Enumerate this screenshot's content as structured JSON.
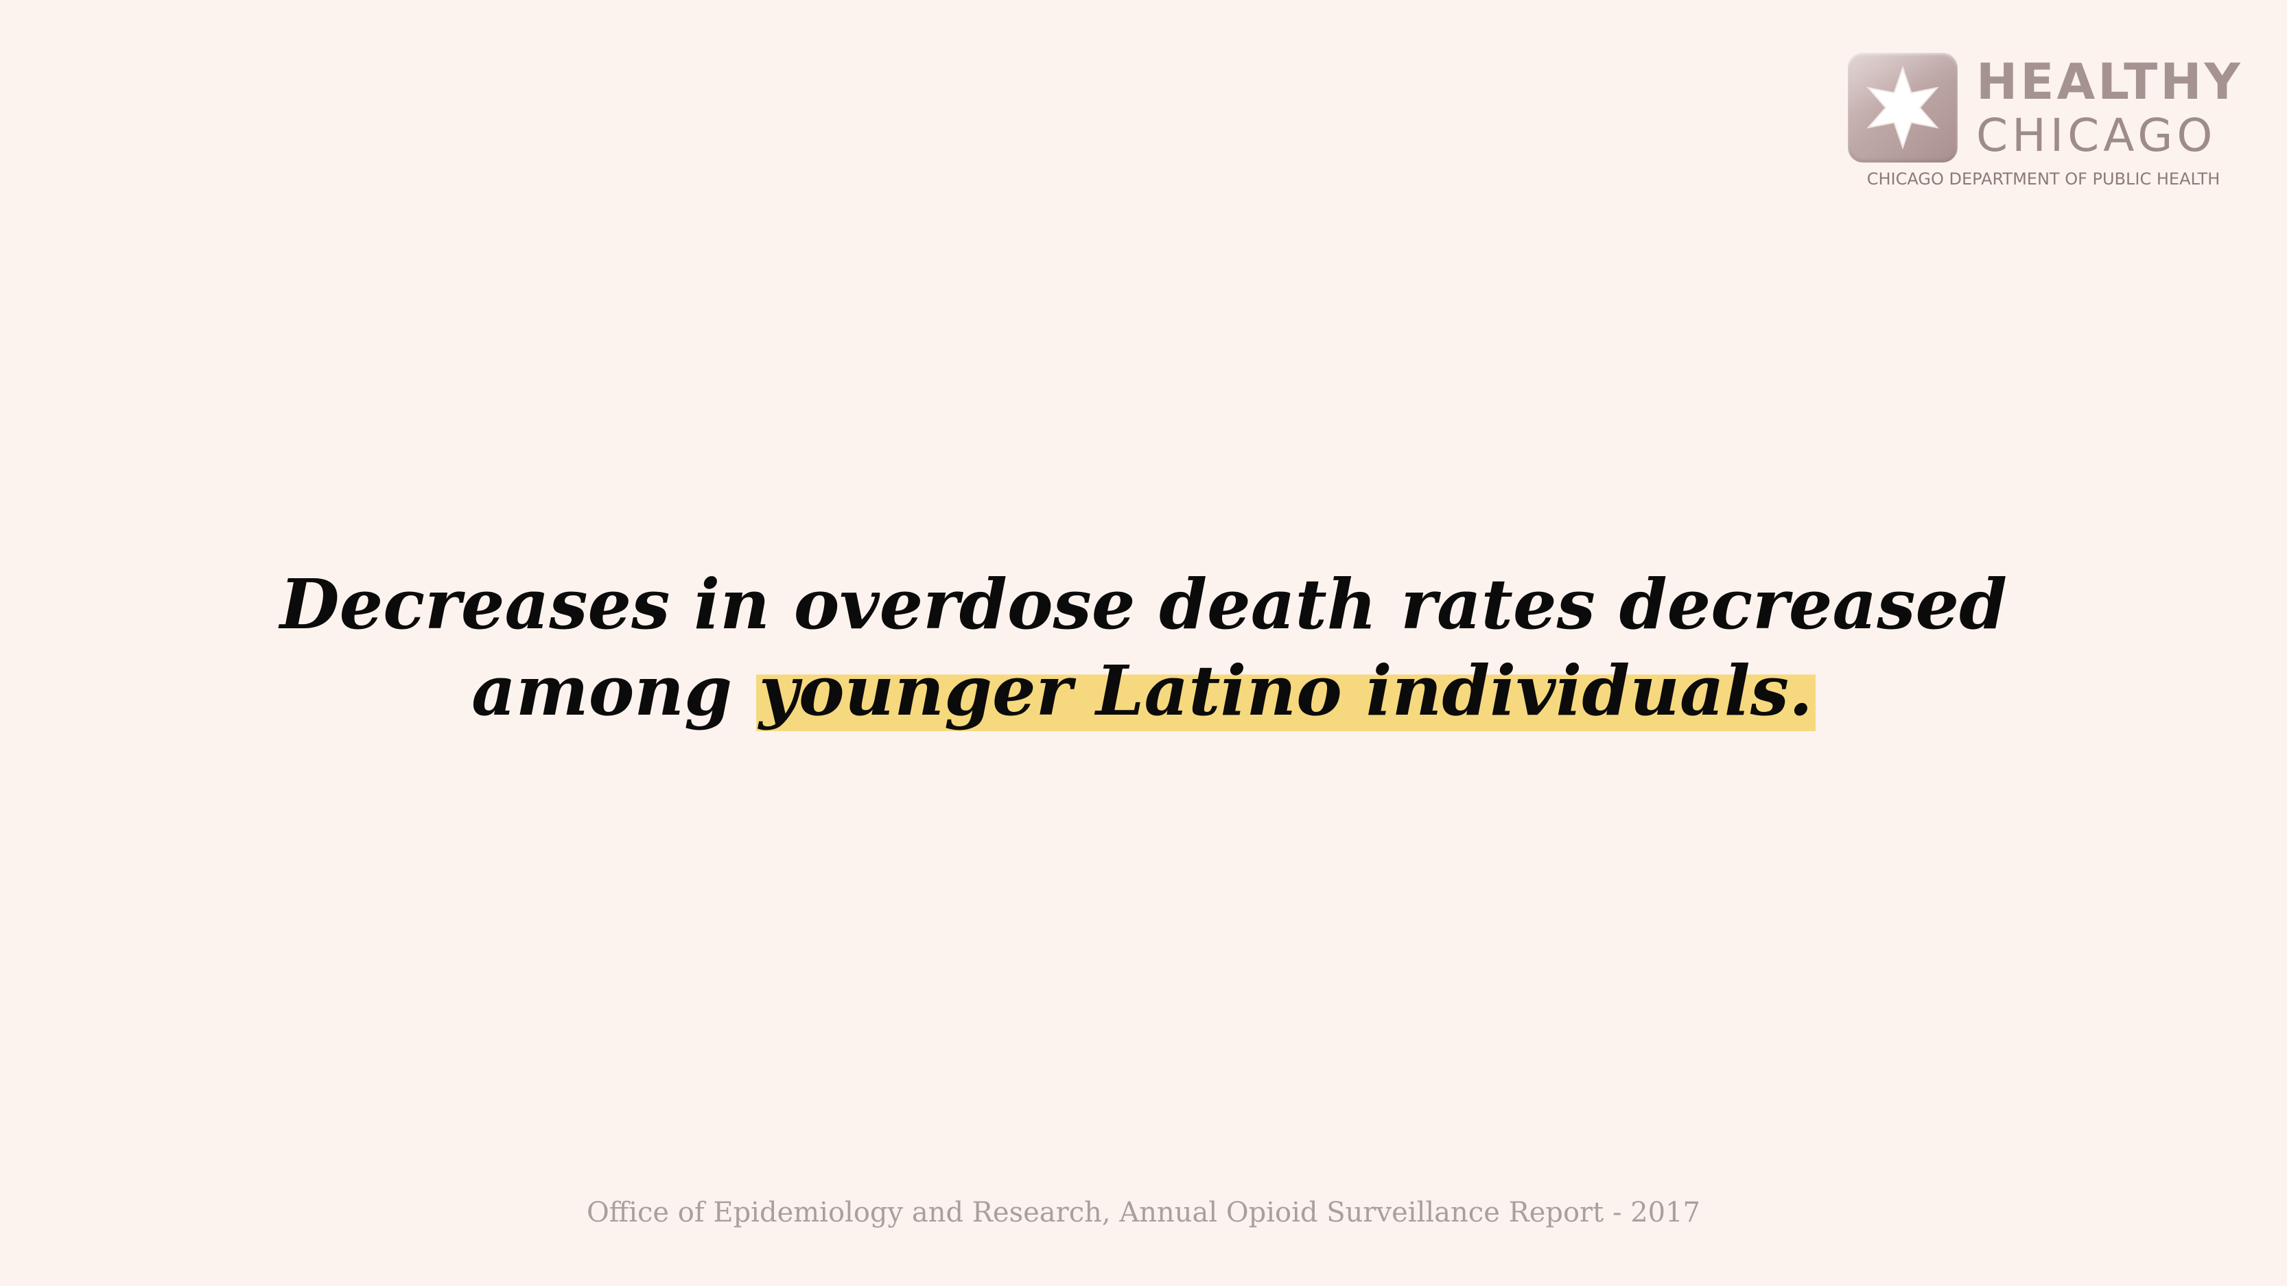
{
  "logo": {
    "word1": "HEALTHY",
    "word2": "CHICAGO",
    "tagline": "CHICAGO DEPARTMENT OF PUBLIC HEALTH",
    "icon": "six-pointed-star-icon"
  },
  "headline": {
    "line1": "Decreases in overdose death rates decreased",
    "line2_prefix": "among ",
    "line2_highlight": "younger Latino individuals."
  },
  "footer": {
    "source": "Office of Epidemiology and Research, Annual Opioid Surveillance Report - 2017"
  },
  "colors": {
    "background": "#FCF3EE",
    "highlight": "#F6D97E",
    "headline_text": "#0B0B0B",
    "footer_text": "#A7A09E",
    "logo": "#A49391"
  }
}
